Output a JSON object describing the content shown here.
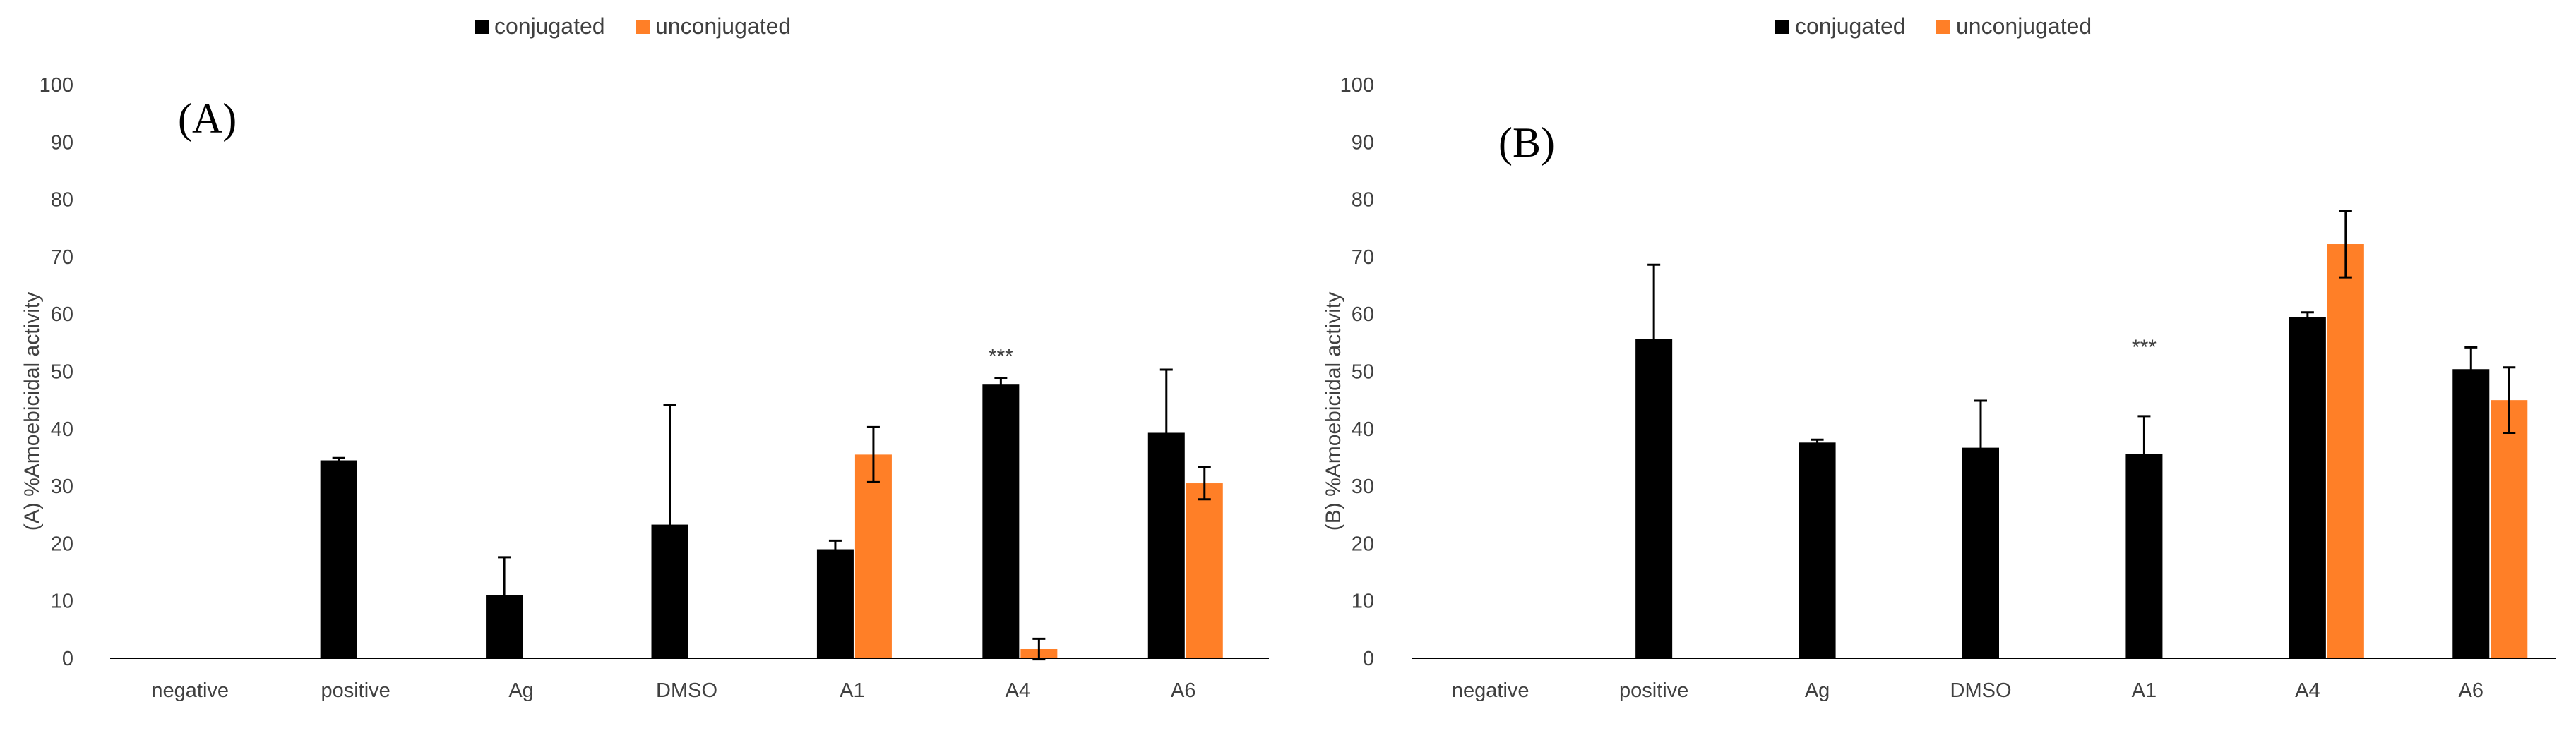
{
  "chart_data": [
    {
      "type": "bar",
      "panel_label": "(A)",
      "ylabel": "(A) %Amoebicidal activity",
      "xlabel": "",
      "ylim": [
        0,
        100
      ],
      "yticks": [
        "0",
        "10",
        "20",
        "30",
        "40",
        "50",
        "60",
        "70",
        "80",
        "90",
        "100"
      ],
      "categories": [
        "negative",
        "positive",
        "Ag",
        "DMSO",
        "A1",
        "A4",
        "A6"
      ],
      "legend": [
        "conjugated",
        "unconjugated"
      ],
      "series": [
        {
          "name": "conjugated",
          "color": "#000000",
          "values": [
            0,
            34.5,
            11,
            23.3,
            19,
            47.7,
            39.3
          ],
          "errors": [
            0,
            0.4,
            6.6,
            20.8,
            1.5,
            1.2,
            11
          ]
        },
        {
          "name": "unconjugated",
          "color": "#ff7f27",
          "values": [
            0,
            0,
            0,
            0,
            35.5,
            1.6,
            30.5
          ],
          "errors": [
            0,
            0,
            0,
            0,
            4.8,
            1.8,
            2.8
          ]
        }
      ],
      "annotations": [
        {
          "text": "***",
          "category": "A4"
        }
      ]
    },
    {
      "type": "bar",
      "panel_label": "(B)",
      "ylabel": "(B) %Amoebicidal activity",
      "xlabel": "",
      "ylim": [
        0,
        100
      ],
      "yticks": [
        "0",
        "10",
        "20",
        "30",
        "40",
        "50",
        "60",
        "70",
        "80",
        "90",
        "100"
      ],
      "categories": [
        "negative",
        "positive",
        "Ag",
        "DMSO",
        "A1",
        "A4",
        "A6"
      ],
      "legend": [
        "conjugated",
        "unconjugated"
      ],
      "series": [
        {
          "name": "conjugated",
          "color": "#000000",
          "values": [
            0,
            55.6,
            37.6,
            36.7,
            35.6,
            59.5,
            50.4
          ],
          "errors": [
            0,
            13,
            0.5,
            8.2,
            6.6,
            0.8,
            3.8
          ]
        },
        {
          "name": "unconjugated",
          "color": "#ff7f27",
          "values": [
            0,
            0,
            0,
            0,
            0,
            72.2,
            45
          ],
          "errors": [
            0,
            0,
            0,
            0,
            0,
            5.8,
            5.7
          ]
        }
      ],
      "annotations": [
        {
          "text": "***",
          "category": "A1"
        }
      ]
    }
  ]
}
